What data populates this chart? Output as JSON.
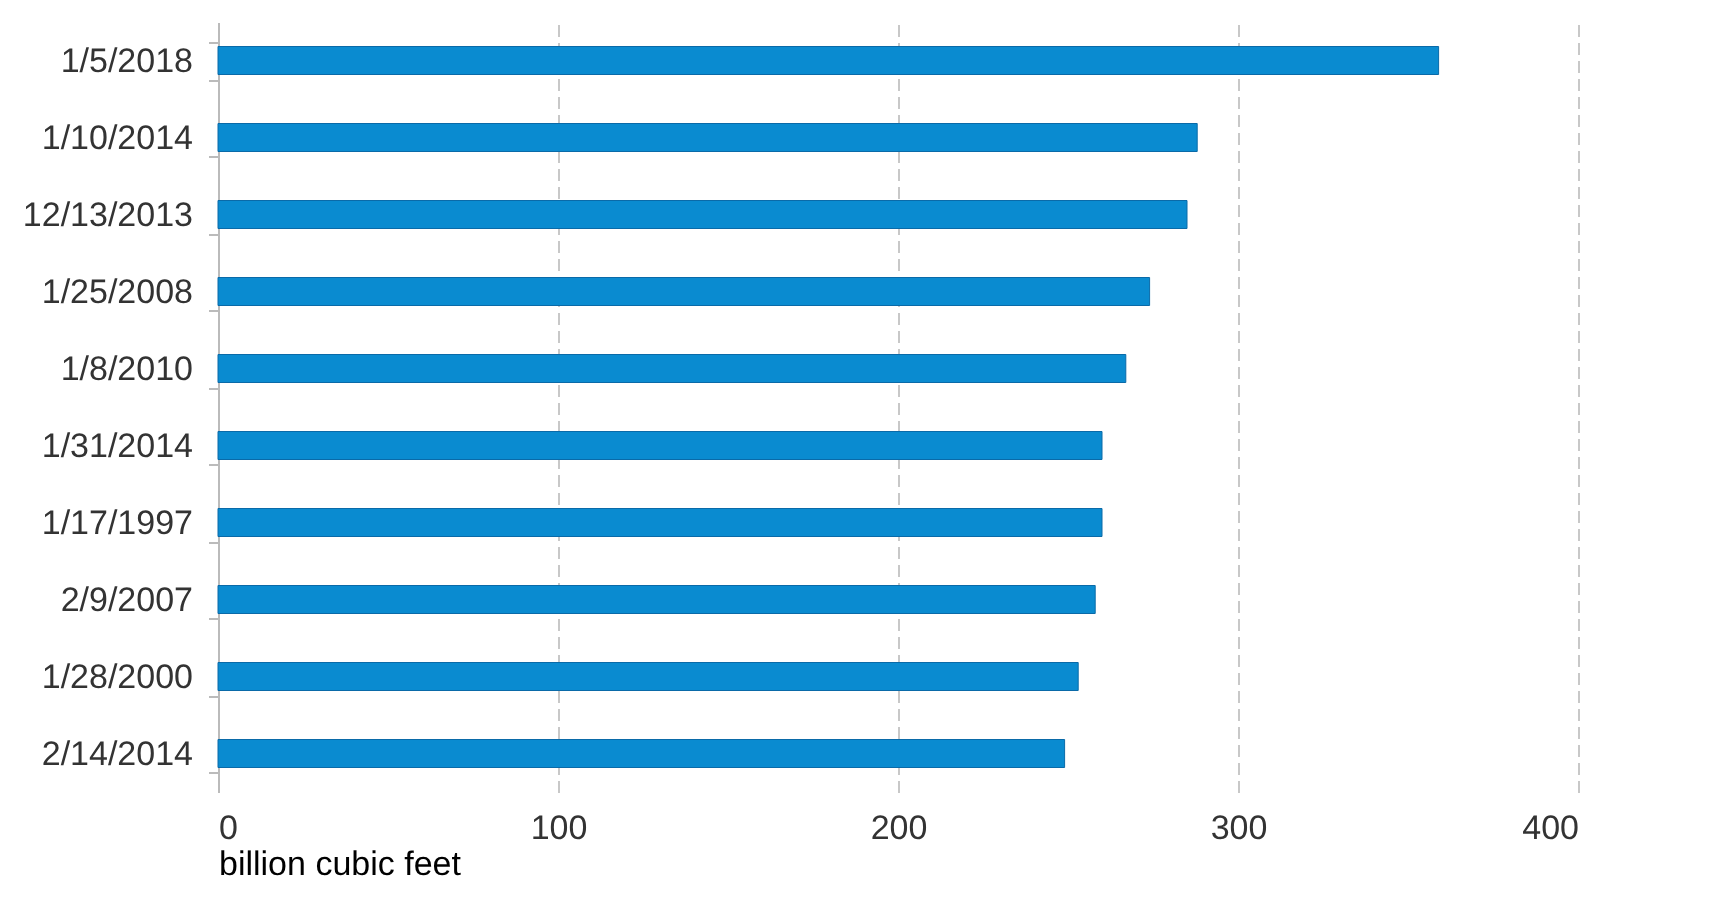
{
  "chart_data": {
    "type": "bar",
    "orientation": "horizontal",
    "xlabel": "billion cubic feet",
    "categories": [
      "1/5/2018",
      "1/10/2014",
      "12/13/2013",
      "1/25/2008",
      "1/8/2010",
      "1/31/2014",
      "1/17/1997",
      "2/9/2007",
      "1/28/2000",
      "2/14/2014"
    ],
    "values": [
      359,
      288,
      285,
      274,
      267,
      260,
      260,
      258,
      253,
      249
    ],
    "color": "#0a8bd0",
    "xlim": [
      0,
      400
    ],
    "xticks": [
      0,
      100,
      200,
      300,
      400
    ],
    "grid": "x"
  }
}
